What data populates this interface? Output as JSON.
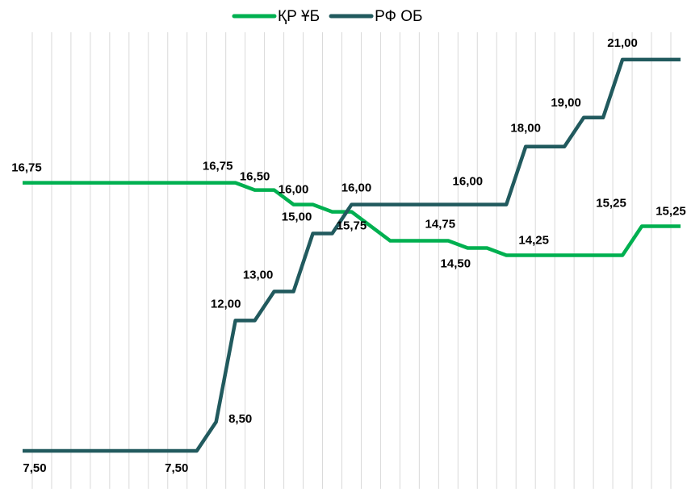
{
  "chart_data": {
    "type": "line",
    "categories": [
      null,
      null,
      null,
      null,
      null,
      null,
      null,
      null,
      null,
      null,
      null,
      null,
      null,
      null,
      null,
      null,
      null,
      null,
      null,
      null,
      null,
      null,
      null,
      null,
      null,
      null,
      null,
      null,
      null,
      null,
      null,
      null,
      null,
      null,
      null
    ],
    "series": [
      {
        "name": "ҚР ҰБ",
        "color": "#00b050",
        "values": [
          16.75,
          16.75,
          16.75,
          16.75,
          16.75,
          16.75,
          16.75,
          16.75,
          16.75,
          16.75,
          16.75,
          16.75,
          16.5,
          16.5,
          16,
          16,
          15.75,
          15.75,
          15.25,
          14.75,
          14.75,
          14.75,
          14.75,
          14.5,
          14.5,
          14.25,
          14.25,
          14.25,
          14.25,
          14.25,
          14.25,
          14.25,
          15.25,
          15.25,
          15.25
        ],
        "value_labels": [
          "16,75",
          null,
          null,
          null,
          null,
          null,
          null,
          null,
          null,
          null,
          null,
          "16,75",
          "16,50",
          null,
          "16,00",
          null,
          null,
          "15,75",
          null,
          null,
          null,
          null,
          "14,75",
          "14,50",
          null,
          null,
          "14,25",
          null,
          null,
          null,
          null,
          null,
          "15,25",
          "15,25",
          null
        ]
      },
      {
        "name": "РФ ОБ",
        "color": "#215a5e",
        "values": [
          7.5,
          7.5,
          7.5,
          7.5,
          7.5,
          7.5,
          7.5,
          7.5,
          7.5,
          7.5,
          8.5,
          12,
          12,
          13,
          13,
          15,
          15,
          16,
          16,
          16,
          16,
          16,
          16,
          16,
          16,
          16,
          18,
          18,
          18,
          19,
          19,
          21,
          21,
          21,
          21
        ],
        "value_labels": [
          "7,50",
          null,
          null,
          null,
          null,
          null,
          null,
          null,
          null,
          "7,50",
          "8,50",
          "12,00",
          null,
          "13,00",
          null,
          "15,00",
          null,
          "16,00",
          null,
          null,
          null,
          null,
          null,
          "16,00",
          null,
          null,
          "18,00",
          null,
          null,
          "19,00",
          null,
          "21,00",
          null,
          null,
          null
        ]
      }
    ],
    "ylim": [
      7,
      22
    ],
    "grid": true,
    "legend": "top"
  }
}
